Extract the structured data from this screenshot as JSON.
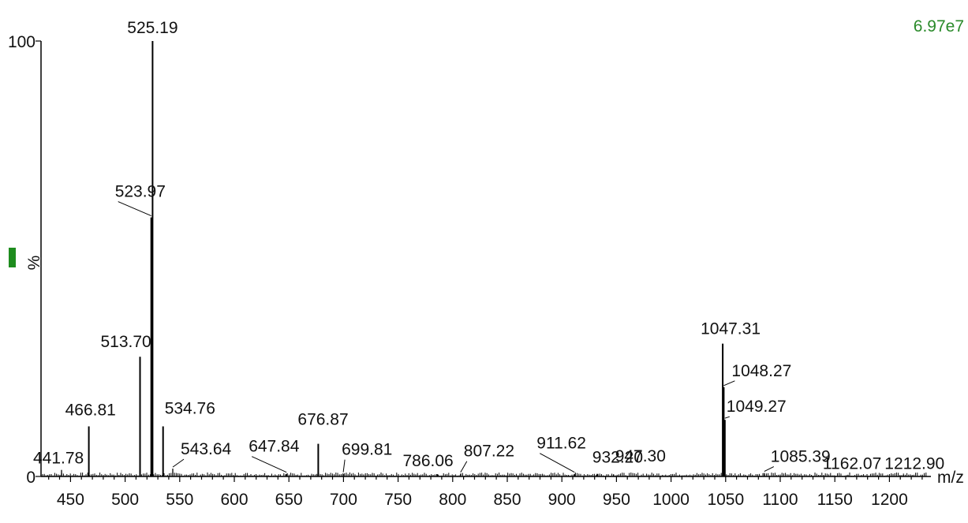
{
  "chart_data": {
    "type": "line",
    "subtype": "mass-spectrum stick plot",
    "x_unit_label": "m/z",
    "y_unit_label": "%",
    "max_intensity_label": "6.97e7",
    "xlim": [
      423,
      1238
    ],
    "ylim": [
      0,
      100
    ],
    "x_ticks": [
      450,
      500,
      550,
      600,
      650,
      700,
      750,
      800,
      850,
      900,
      950,
      1000,
      1050,
      1100,
      1150,
      1200
    ],
    "y_ticks": [
      0,
      100
    ],
    "y_tick_labels": [
      "0",
      "100"
    ],
    "color_marker": "#1e8c1e",
    "peaks": [
      {
        "mz": 441.78,
        "intensity": 1.5,
        "label": "441.78"
      },
      {
        "mz": 466.81,
        "intensity": 11.5,
        "label": "466.81"
      },
      {
        "mz": 513.7,
        "intensity": 27.5,
        "label": "513.70"
      },
      {
        "mz": 523.97,
        "intensity": 59.5,
        "label": "523.97"
      },
      {
        "mz": 525.19,
        "intensity": 100,
        "label": "525.19"
      },
      {
        "mz": 534.76,
        "intensity": 11.5,
        "label": "534.76"
      },
      {
        "mz": 543.64,
        "intensity": 1.8,
        "label": "543.64"
      },
      {
        "mz": 647.84,
        "intensity": 0.6,
        "label": "647.84"
      },
      {
        "mz": 676.87,
        "intensity": 7.5,
        "label": "676.87"
      },
      {
        "mz": 699.81,
        "intensity": 0.6,
        "label": "699.81"
      },
      {
        "mz": 786.06,
        "intensity": 0.5,
        "label": "786.06"
      },
      {
        "mz": 807.22,
        "intensity": 0.6,
        "label": "807.22"
      },
      {
        "mz": 911.62,
        "intensity": 0.6,
        "label": "911.62"
      },
      {
        "mz": 932.2,
        "intensity": 0.6,
        "label": "932.20"
      },
      {
        "mz": 947.3,
        "intensity": 0.5,
        "label": "947.30"
      },
      {
        "mz": 1047.31,
        "intensity": 30.5,
        "label": "1047.31"
      },
      {
        "mz": 1048.27,
        "intensity": 20.5,
        "label": "1048.27"
      },
      {
        "mz": 1049.27,
        "intensity": 13.0,
        "label": "1049.27"
      },
      {
        "mz": 1085.39,
        "intensity": 0.8,
        "label": "1085.39"
      },
      {
        "mz": 1162.07,
        "intensity": 0.3,
        "label": "1162.07"
      },
      {
        "mz": 1212.9,
        "intensity": 0.3,
        "label": "1212.90"
      }
    ]
  }
}
